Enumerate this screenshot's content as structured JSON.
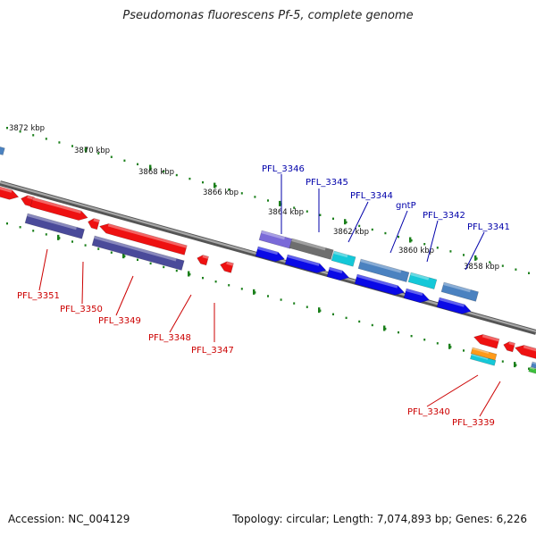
{
  "title": "Pseudomonas fluorescens Pf-5, complete genome",
  "footer": {
    "accession": "Accession: NC_004129",
    "summary": "Topology: circular; Length: 7,074,893 bp; Genes: 6,226"
  },
  "ruler_labels": [
    "3872 kbp",
    "3870 kbp",
    "3868 kbp",
    "3866 kbp",
    "3864 kbp",
    "3862 kbp",
    "3860 kbp",
    "3858 kbp"
  ],
  "forward_gene_labels": [
    "PFL_3346",
    "PFL_3345",
    "PFL_3344",
    "gntP",
    "PFL_3342",
    "PFL_3341"
  ],
  "reverse_gene_labels": [
    "PFL_3351",
    "PFL_3350",
    "PFL_3349",
    "PFL_3348",
    "PFL_3347",
    "PFL_3340",
    "PFL_3339"
  ],
  "colors": {
    "reverse_label": "#cc0000",
    "forward_label": "#0000aa",
    "ruler_tick": "#1a7f1a",
    "backbone": "#808080",
    "red": "#ee1111",
    "blue": "#0a0ae6",
    "slate": "#4a4a9a",
    "violet": "#7a6ad8",
    "grey": "#6e6e6e",
    "cyan": "#15c8d8",
    "steel": "#4b82c0",
    "orange": "#ff9a1a",
    "green": "#3cbf3c"
  }
}
